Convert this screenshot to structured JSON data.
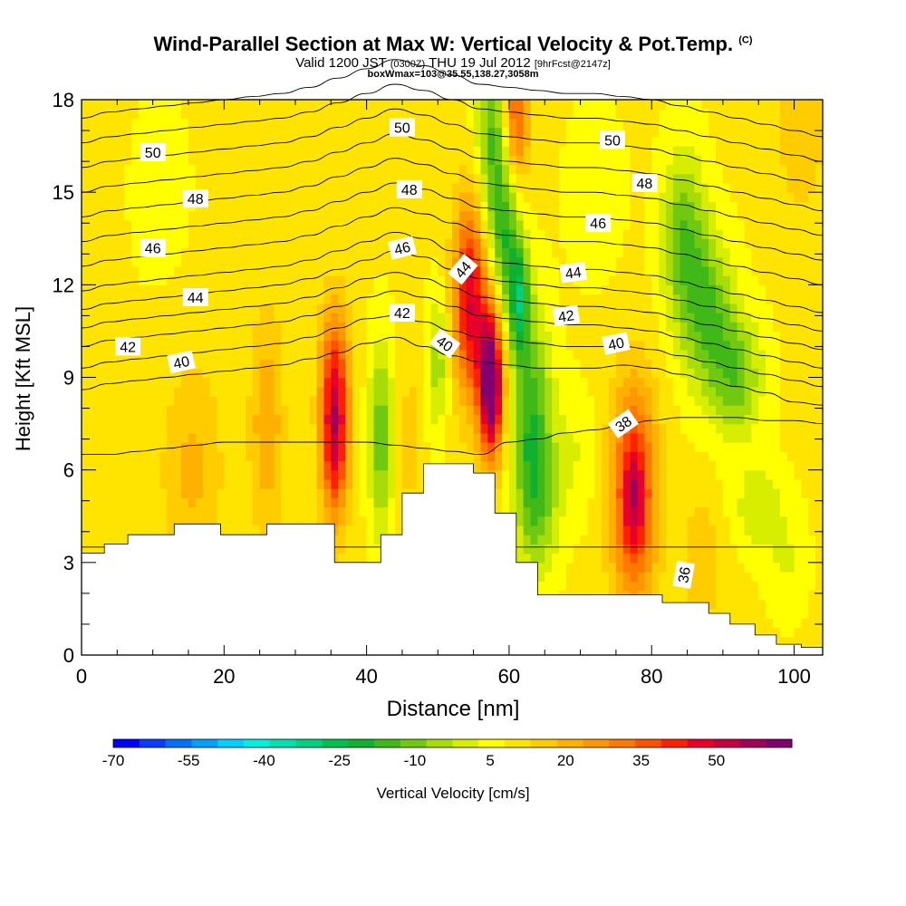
{
  "header": {
    "title": "Wind-Parallel Section at Max W: Vertical Velocity & Pot.Temp.",
    "copyright_mark": "(C)",
    "valid_prefix": "Valid 1200 JST",
    "valid_utc": "(0300Z)",
    "valid_date": "THU 19 Jul 2012",
    "forecast_info": "[9hrFcst@2147z]",
    "box_info": "boxWmax=103@35.55,138.27,3058m"
  },
  "chart_data": {
    "type": "heatmap",
    "title": "Wind-Parallel Section at Max W: Vertical Velocity & Pot.Temp.",
    "xlabel": "Distance [nm]",
    "ylabel": "Height [Kft MSL]",
    "xlim": [
      0,
      104
    ],
    "ylim": [
      0,
      18
    ],
    "x_ticks": [
      0,
      20,
      40,
      60,
      80,
      100
    ],
    "y_ticks": [
      0,
      3,
      6,
      9,
      12,
      15,
      18
    ],
    "colorbar": {
      "label": "Vertical Velocity [cm/s]",
      "tick_labels": [
        -70,
        -55,
        -40,
        -25,
        -10,
        5,
        20,
        35,
        50
      ],
      "levels": [
        -70,
        -65,
        -60,
        -55,
        -50,
        -45,
        -40,
        -35,
        -30,
        -25,
        -20,
        -15,
        -10,
        -5,
        0,
        5,
        10,
        15,
        20,
        25,
        30,
        35,
        40,
        45,
        50,
        55,
        60
      ],
      "colors": [
        "#0000ff",
        "#0a3cff",
        "#0070ff",
        "#00a0ff",
        "#00d0ff",
        "#00f0e0",
        "#00e0b0",
        "#00d080",
        "#00c050",
        "#10b030",
        "#40b818",
        "#70c810",
        "#a8dc08",
        "#d8ee00",
        "#ffff00",
        "#ffe400",
        "#ffcc00",
        "#ffb000",
        "#ff9800",
        "#ff7800",
        "#ff5000",
        "#ff2000",
        "#e8002a",
        "#c80040",
        "#a00058",
        "#800070"
      ]
    },
    "velocity_features": [
      {
        "x": 35.5,
        "z": 8.2,
        "sx": 1.4,
        "sz": 2.0,
        "w": 38
      },
      {
        "x": 35.5,
        "z": 6.0,
        "sx": 1.2,
        "sz": 1.6,
        "w": 14
      },
      {
        "x": 26.0,
        "z": 7.5,
        "sx": 1.6,
        "sz": 2.5,
        "w": 14
      },
      {
        "x": 15.5,
        "z": 6.0,
        "sx": 3.0,
        "sz": 2.5,
        "w": 10
      },
      {
        "x": 11.0,
        "z": 15.0,
        "sx": 4.0,
        "sz": 3.0,
        "w": -2
      },
      {
        "x": 42.0,
        "z": 7.0,
        "sx": 1.2,
        "sz": 2.2,
        "w": -20
      },
      {
        "x": 46.0,
        "z": 7.0,
        "sx": 1.0,
        "sz": 1.5,
        "w": 8
      },
      {
        "x": 50.0,
        "z": 9.5,
        "sx": 1.0,
        "sz": 1.6,
        "w": -14
      },
      {
        "x": 54.5,
        "z": 11.5,
        "sx": 1.6,
        "sz": 2.2,
        "w": 38
      },
      {
        "x": 57.5,
        "z": 9.0,
        "sx": 1.3,
        "sz": 1.8,
        "w": 46
      },
      {
        "x": 57.5,
        "z": 8.5,
        "sx": 0.9,
        "sz": 1.2,
        "w": 18
      },
      {
        "x": 61.0,
        "z": 17.5,
        "sx": 1.3,
        "sz": 1.6,
        "w": 26
      },
      {
        "x": 57.5,
        "z": 17.0,
        "sx": 1.5,
        "sz": 2.2,
        "w": -20
      },
      {
        "x": 59.5,
        "z": 13.5,
        "sx": 1.5,
        "sz": 2.0,
        "w": -24
      },
      {
        "x": 61.5,
        "z": 11.5,
        "sx": 1.0,
        "sz": 1.2,
        "w": -26
      },
      {
        "x": 63.0,
        "z": 8.0,
        "sx": 2.0,
        "sz": 2.4,
        "w": -22
      },
      {
        "x": 64.0,
        "z": 5.0,
        "sx": 2.0,
        "sz": 1.8,
        "w": -16
      },
      {
        "x": 69.0,
        "z": 6.5,
        "sx": 2.0,
        "sz": 1.5,
        "w": -6
      },
      {
        "x": 77.5,
        "z": 5.2,
        "sx": 2.2,
        "sz": 2.5,
        "w": 34
      },
      {
        "x": 77.5,
        "z": 5.2,
        "sx": 1.0,
        "sz": 1.2,
        "w": 12
      },
      {
        "x": 84.5,
        "z": 13.5,
        "sx": 2.2,
        "sz": 2.0,
        "w": -20
      },
      {
        "x": 88.0,
        "z": 11.0,
        "sx": 2.5,
        "sz": 1.8,
        "w": -20
      },
      {
        "x": 92.0,
        "z": 9.0,
        "sx": 2.5,
        "sz": 1.4,
        "w": -18
      },
      {
        "x": 95.0,
        "z": 4.8,
        "sx": 2.5,
        "sz": 1.0,
        "w": -10
      },
      {
        "x": 99.0,
        "z": 3.0,
        "sx": 2.0,
        "sz": 1.2,
        "w": -6
      },
      {
        "x": 87.0,
        "z": 3.0,
        "sx": 2.0,
        "sz": 1.5,
        "w": 8
      },
      {
        "x": 72.0,
        "z": 15.0,
        "sx": 3.0,
        "sz": 2.0,
        "w": -4
      },
      {
        "x": 101.0,
        "z": 17.0,
        "sx": 2.5,
        "sz": 2.0,
        "w": 8
      }
    ],
    "terrain": {
      "x": [
        0,
        3.2,
        3.2,
        6.5,
        6.5,
        13,
        13,
        19.5,
        19.5,
        26,
        26,
        35.5,
        35.5,
        42,
        42,
        45,
        45,
        48,
        48,
        55,
        55,
        58,
        58,
        61,
        61,
        64,
        64,
        81.5,
        81.5,
        88,
        88,
        91,
        91,
        94.5,
        94.5,
        97.5,
        97.5,
        101,
        101,
        104
      ],
      "z": [
        3.3,
        3.3,
        3.6,
        3.6,
        3.9,
        3.9,
        4.25,
        4.25,
        3.9,
        3.9,
        4.25,
        4.25,
        3.0,
        3.0,
        3.9,
        3.9,
        5.25,
        5.25,
        6.2,
        6.2,
        5.9,
        5.9,
        4.6,
        4.6,
        3.0,
        3.0,
        1.95,
        1.95,
        1.7,
        1.7,
        1.35,
        1.35,
        1.0,
        1.0,
        0.65,
        0.65,
        0.35,
        0.35,
        0.25,
        0.25
      ]
    },
    "isentropes": [
      {
        "value": 36,
        "z": [
          3.5,
          3.5,
          3.5,
          3.5,
          3.5,
          3.5,
          3.5,
          3.5,
          3.5,
          3.5,
          3.5,
          3.5,
          3.5,
          3.5,
          3.5,
          3.5,
          3.5,
          3.5,
          3.5,
          3.5,
          3.5,
          3.5,
          3.5,
          3.5,
          3.5,
          3.5,
          3.5
        ]
      },
      {
        "value": 38,
        "z": [
          6.5,
          6.5,
          6.6,
          6.7,
          6.8,
          6.9,
          6.9,
          6.9,
          6.9,
          6.9,
          6.9,
          6.8,
          6.7,
          6.6,
          6.5,
          6.9,
          7.0,
          7.2,
          7.3,
          7.45,
          7.6,
          7.7,
          7.7,
          7.7,
          7.6,
          7.6,
          7.5
        ]
      },
      {
        "value": 40,
        "z": [
          8.6,
          8.8,
          8.9,
          9.0,
          9.1,
          9.2,
          9.3,
          9.4,
          9.6,
          9.8,
          10.1,
          10.3,
          10.0,
          9.7,
          9.5,
          9.4,
          9.3,
          9.3,
          9.3,
          9.4,
          9.3,
          9.1,
          8.9,
          8.7,
          8.5,
          8.2,
          8.1
        ]
      },
      {
        "value": 41,
        "z": [
          9.3,
          9.5,
          9.6,
          9.7,
          9.8,
          9.9,
          10.0,
          10.1,
          10.3,
          10.6,
          10.9,
          11.0,
          10.8,
          10.5,
          10.3,
          10.2,
          10.1,
          10.0,
          10.0,
          10.0,
          9.9,
          9.7,
          9.5,
          9.3,
          9.1,
          8.9,
          8.7
        ]
      },
      {
        "value": 42,
        "z": [
          10.0,
          10.2,
          10.3,
          10.4,
          10.5,
          10.6,
          10.7,
          10.8,
          11.0,
          11.3,
          11.6,
          11.8,
          11.6,
          11.3,
          11.0,
          10.9,
          10.8,
          10.7,
          10.7,
          10.6,
          10.5,
          10.3,
          10.1,
          9.9,
          9.7,
          9.5,
          9.3
        ]
      },
      {
        "value": 43,
        "z": [
          10.6,
          10.8,
          10.9,
          11.0,
          11.1,
          11.2,
          11.3,
          11.4,
          11.6,
          11.9,
          12.2,
          12.4,
          12.2,
          11.9,
          11.6,
          11.5,
          11.4,
          11.3,
          11.3,
          11.2,
          11.1,
          10.9,
          10.7,
          10.5,
          10.3,
          10.1,
          9.9
        ]
      },
      {
        "value": 44,
        "z": [
          11.2,
          11.4,
          11.5,
          11.6,
          11.7,
          11.8,
          11.9,
          12.0,
          12.2,
          12.5,
          12.8,
          13.1,
          12.9,
          12.5,
          12.2,
          12.1,
          12.0,
          11.9,
          11.9,
          11.8,
          11.7,
          11.5,
          11.3,
          11.1,
          10.9,
          10.7,
          10.5
        ]
      },
      {
        "value": 45,
        "z": [
          11.8,
          12.0,
          12.1,
          12.2,
          12.3,
          12.4,
          12.5,
          12.6,
          12.8,
          13.1,
          13.4,
          13.7,
          13.5,
          13.1,
          12.8,
          12.7,
          12.6,
          12.5,
          12.5,
          12.4,
          12.3,
          12.1,
          11.9,
          11.7,
          11.5,
          11.3,
          11.1
        ]
      },
      {
        "value": 46,
        "z": [
          12.6,
          12.8,
          12.9,
          13.0,
          13.1,
          13.2,
          13.3,
          13.4,
          13.6,
          13.9,
          14.2,
          14.5,
          14.3,
          14.0,
          13.7,
          13.6,
          13.5,
          13.4,
          13.4,
          13.3,
          13.2,
          13.0,
          12.8,
          12.6,
          12.4,
          12.2,
          12.0
        ]
      },
      {
        "value": 47,
        "z": [
          13.4,
          13.6,
          13.7,
          13.8,
          13.9,
          14.0,
          14.1,
          14.2,
          14.4,
          14.7,
          15.0,
          15.3,
          15.1,
          14.8,
          14.5,
          14.4,
          14.3,
          14.2,
          14.2,
          14.1,
          14.0,
          13.8,
          13.6,
          13.4,
          13.2,
          13.0,
          12.8
        ]
      },
      {
        "value": 48,
        "z": [
          14.2,
          14.4,
          14.5,
          14.6,
          14.7,
          14.8,
          14.9,
          15.0,
          15.2,
          15.5,
          15.8,
          16.1,
          15.9,
          15.6,
          15.3,
          15.2,
          15.1,
          15.0,
          15.0,
          14.9,
          14.8,
          14.6,
          14.4,
          14.2,
          14.0,
          13.8,
          13.6
        ]
      },
      {
        "value": 49,
        "z": [
          15.0,
          15.2,
          15.3,
          15.4,
          15.5,
          15.6,
          15.7,
          15.8,
          16.0,
          16.3,
          16.6,
          16.9,
          16.7,
          16.4,
          16.1,
          16.0,
          15.9,
          15.8,
          15.8,
          15.7,
          15.6,
          15.4,
          15.2,
          15.0,
          14.8,
          14.6,
          14.4
        ]
      },
      {
        "value": 50,
        "z": [
          15.8,
          16.0,
          16.1,
          16.2,
          16.3,
          16.4,
          16.5,
          16.6,
          16.8,
          17.1,
          17.4,
          17.7,
          17.5,
          17.2,
          16.9,
          16.8,
          16.7,
          16.6,
          16.6,
          16.5,
          16.4,
          16.2,
          16.0,
          15.8,
          15.6,
          15.4,
          15.2
        ]
      },
      {
        "value": 51,
        "z": [
          16.6,
          16.8,
          16.9,
          17.0,
          17.1,
          17.2,
          17.3,
          17.4,
          17.6,
          17.9,
          18.2,
          18.5,
          18.3,
          18.0,
          17.7,
          17.6,
          17.5,
          17.4,
          17.4,
          17.3,
          17.2,
          17.0,
          16.8,
          16.6,
          16.4,
          16.2,
          16.0
        ]
      },
      {
        "value": 52,
        "z": [
          17.4,
          17.6,
          17.7,
          17.8,
          17.9,
          18.0,
          18.1,
          18.2,
          18.4,
          18.7,
          19.0,
          19.3,
          19.1,
          18.8,
          18.5,
          18.4,
          18.3,
          18.2,
          18.2,
          18.1,
          18.0,
          17.8,
          17.6,
          17.4,
          17.2,
          17.0,
          16.8
        ]
      }
    ],
    "isentrope_x": [
      0,
      4,
      8,
      12,
      16,
      20,
      24,
      28,
      32,
      36,
      40,
      44,
      48,
      52,
      56,
      60,
      64,
      68,
      72,
      76,
      80,
      84,
      88,
      92,
      96,
      100,
      104
    ],
    "contour_labels": [
      {
        "text": "50",
        "x": 10,
        "z": 16.3,
        "angle": 0
      },
      {
        "text": "48",
        "x": 16,
        "z": 14.8,
        "angle": 0
      },
      {
        "text": "46",
        "x": 10,
        "z": 13.2,
        "angle": 0
      },
      {
        "text": "44",
        "x": 16,
        "z": 11.6,
        "angle": 0
      },
      {
        "text": "42",
        "x": 6.5,
        "z": 10.0,
        "angle": 0
      },
      {
        "text": "40",
        "x": 14,
        "z": 9.5,
        "angle": -12
      },
      {
        "text": "50",
        "x": 45,
        "z": 17.1,
        "angle": 0
      },
      {
        "text": "48",
        "x": 46,
        "z": 15.1,
        "angle": 0
      },
      {
        "text": "46",
        "x": 45,
        "z": 13.2,
        "angle": -14
      },
      {
        "text": "44",
        "x": 53.5,
        "z": 12.5,
        "angle": -50
      },
      {
        "text": "42",
        "x": 45,
        "z": 11.1,
        "angle": 0
      },
      {
        "text": "40",
        "x": 51,
        "z": 10.1,
        "angle": 36
      },
      {
        "text": "50",
        "x": 74.5,
        "z": 16.7,
        "angle": 0
      },
      {
        "text": "48",
        "x": 79,
        "z": 15.3,
        "angle": 0
      },
      {
        "text": "46",
        "x": 72.5,
        "z": 14.0,
        "angle": 0
      },
      {
        "text": "44",
        "x": 69,
        "z": 12.4,
        "angle": -8
      },
      {
        "text": "42",
        "x": 68,
        "z": 11.0,
        "angle": -8
      },
      {
        "text": "40",
        "x": 75,
        "z": 10.1,
        "angle": -12
      },
      {
        "text": "38",
        "x": 76,
        "z": 7.5,
        "angle": -35
      },
      {
        "text": "36",
        "x": 84.5,
        "z": 2.6,
        "angle": -80
      }
    ]
  }
}
